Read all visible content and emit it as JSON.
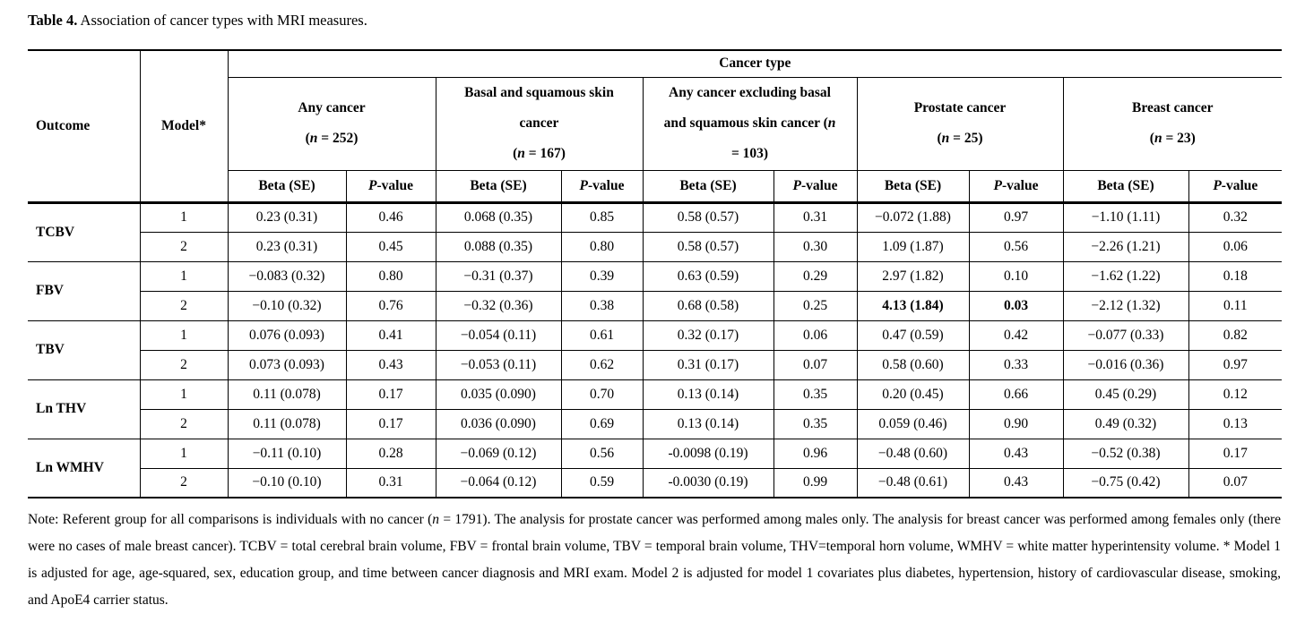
{
  "page": {
    "background": "#ffffff",
    "text_color": "#000000"
  },
  "title": {
    "bold": "Table 4.",
    "rest": " Association of cancer types with MRI measures."
  },
  "table": {
    "corner": {
      "outcome": "Outcome",
      "model": "Model*"
    },
    "cancer_type_header": "Cancer type",
    "sub_headers": {
      "beta": "Beta (SE)",
      "pvalue": "P-value"
    },
    "groups": [
      {
        "lines": [
          "Any cancer",
          "(n = 252)"
        ]
      },
      {
        "lines": [
          "Basal and squamous skin",
          "cancer",
          "(n = 167)"
        ]
      },
      {
        "lines": [
          "Any cancer excluding basal",
          "and squamous skin cancer (n",
          "= 103)"
        ]
      },
      {
        "lines": [
          "Prostate cancer",
          "(n = 25)"
        ]
      },
      {
        "lines": [
          "Breast cancer",
          "(n = 23)"
        ]
      }
    ],
    "rows": [
      {
        "outcome": "TCBV",
        "models": [
          {
            "model": "1",
            "cells": [
              "0.23 (0.31)",
              "0.46",
              "0.068 (0.35)",
              "0.85",
              "0.58 (0.57)",
              "0.31",
              "−0.072 (1.88)",
              "0.97",
              "−1.10 (1.11)",
              "0.32"
            ],
            "bold_cols": []
          },
          {
            "model": "2",
            "cells": [
              "0.23 (0.31)",
              "0.45",
              "0.088 (0.35)",
              "0.80",
              "0.58 (0.57)",
              "0.30",
              "1.09 (1.87)",
              "0.56",
              "−2.26 (1.21)",
              "0.06"
            ],
            "bold_cols": []
          }
        ]
      },
      {
        "outcome": "FBV",
        "models": [
          {
            "model": "1",
            "cells": [
              "−0.083 (0.32)",
              "0.80",
              "−0.31 (0.37)",
              "0.39",
              "0.63 (0.59)",
              "0.29",
              "2.97 (1.82)",
              "0.10",
              "−1.62 (1.22)",
              "0.18"
            ],
            "bold_cols": []
          },
          {
            "model": "2",
            "cells": [
              "−0.10 (0.32)",
              "0.76",
              "−0.32 (0.36)",
              "0.38",
              "0.68 (0.58)",
              "0.25",
              "4.13 (1.84)",
              "0.03",
              "−2.12 (1.32)",
              "0.11"
            ],
            "bold_cols": [
              6,
              7
            ]
          }
        ]
      },
      {
        "outcome": "TBV",
        "models": [
          {
            "model": "1",
            "cells": [
              "0.076 (0.093)",
              "0.41",
              "−0.054 (0.11)",
              "0.61",
              "0.32 (0.17)",
              "0.06",
              "0.47 (0.59)",
              "0.42",
              "−0.077 (0.33)",
              "0.82"
            ],
            "bold_cols": []
          },
          {
            "model": "2",
            "cells": [
              "0.073 (0.093)",
              "0.43",
              "−0.053 (0.11)",
              "0.62",
              "0.31 (0.17)",
              "0.07",
              "0.58 (0.60)",
              "0.33",
              "−0.016 (0.36)",
              "0.97"
            ],
            "bold_cols": []
          }
        ]
      },
      {
        "outcome": "Ln THV",
        "models": [
          {
            "model": "1",
            "cells": [
              "0.11 (0.078)",
              "0.17",
              "0.035 (0.090)",
              "0.70",
              "0.13 (0.14)",
              "0.35",
              "0.20 (0.45)",
              "0.66",
              "0.45 (0.29)",
              "0.12"
            ],
            "bold_cols": []
          },
          {
            "model": "2",
            "cells": [
              "0.11 (0.078)",
              "0.17",
              "0.036 (0.090)",
              "0.69",
              "0.13 (0.14)",
              "0.35",
              "0.059 (0.46)",
              "0.90",
              "0.49 (0.32)",
              "0.13"
            ],
            "bold_cols": []
          }
        ]
      },
      {
        "outcome": "Ln WMHV",
        "models": [
          {
            "model": "1",
            "cells": [
              "−0.11 (0.10)",
              "0.28",
              "−0.069 (0.12)",
              "0.56",
              "-0.0098 (0.19)",
              "0.96",
              "−0.48 (0.60)",
              "0.43",
              "−0.52 (0.38)",
              "0.17"
            ],
            "bold_cols": []
          },
          {
            "model": "2",
            "cells": [
              "−0.10 (0.10)",
              "0.31",
              "−0.064 (0.12)",
              "0.59",
              "-0.0030 (0.19)",
              "0.99",
              "−0.48 (0.61)",
              "0.43",
              "−0.75 (0.42)",
              "0.07"
            ],
            "bold_cols": []
          }
        ]
      }
    ]
  },
  "note": "Note: Referent group for all comparisons is individuals with no cancer (n = 1791). The analysis for prostate cancer was performed among males only. The analysis for breast cancer was performed among females only (there were no cases of male breast cancer). TCBV = total cerebral brain volume, FBV = frontal brain volume, TBV = temporal brain volume, THV=temporal horn volume, WMHV = white matter hyperintensity volume. * Model 1 is adjusted for age, age-squared, sex, education group, and time between cancer diagnosis and MRI exam.  Model 2 is adjusted for model 1 covariates plus diabetes, hypertension, history of cardiovascular disease, smoking, and ApoE4 carrier status."
}
